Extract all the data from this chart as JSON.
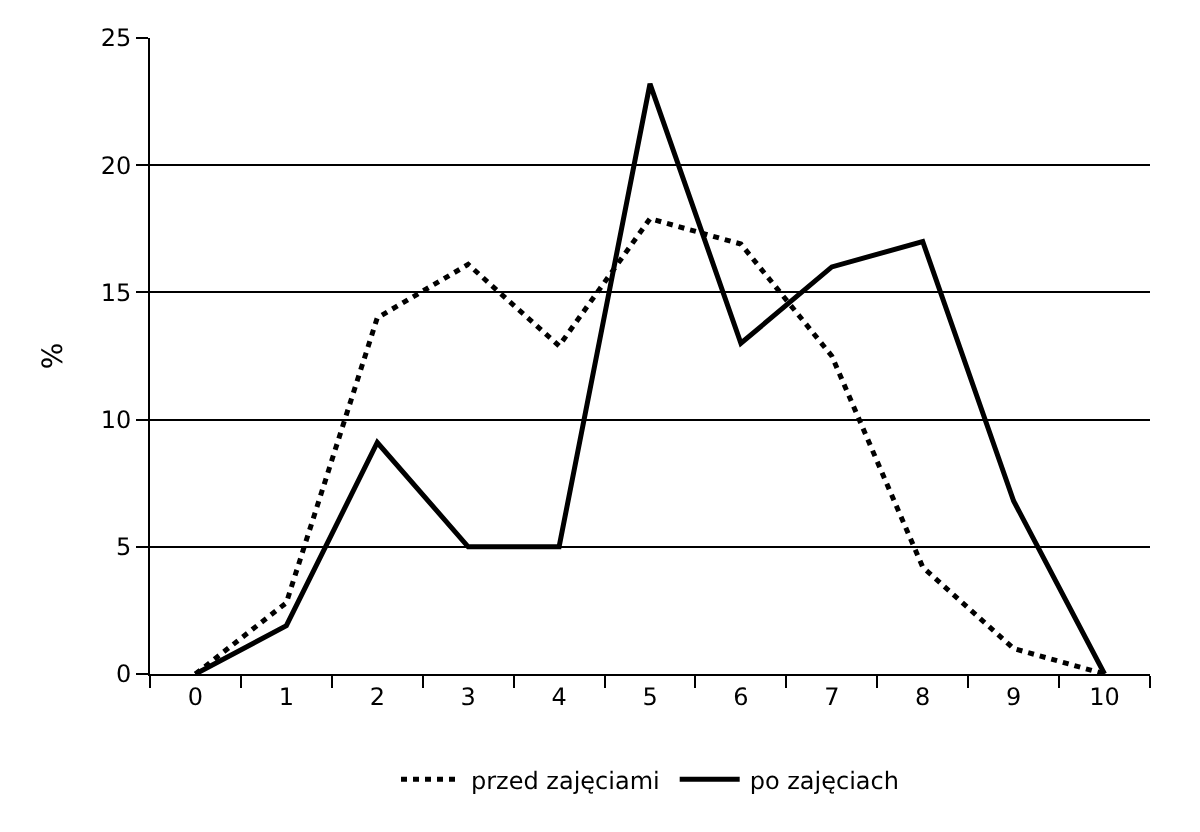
{
  "chart_data": {
    "type": "line",
    "ylabel": "%",
    "categories": [
      "0",
      "1",
      "2",
      "3",
      "4",
      "5",
      "6",
      "7",
      "8",
      "9",
      "10"
    ],
    "series": [
      {
        "name": "przed zajęciami",
        "color": "#000000",
        "line_style": "dotted",
        "values": [
          0,
          2.8,
          14.0,
          16.1,
          12.9,
          17.9,
          16.9,
          12.5,
          4.2,
          1.0,
          0
        ]
      },
      {
        "name": "po zajęciach",
        "color": "#000000",
        "line_style": "solid",
        "values": [
          0,
          1.9,
          9.1,
          5.0,
          5.0,
          23.2,
          13.0,
          16.0,
          17.0,
          6.8,
          0
        ]
      }
    ],
    "ylim": [
      0,
      25
    ],
    "yticks": [
      0,
      5,
      10,
      15,
      20,
      25
    ],
    "grid": "y",
    "legend": "bottom",
    "marker": "none"
  }
}
